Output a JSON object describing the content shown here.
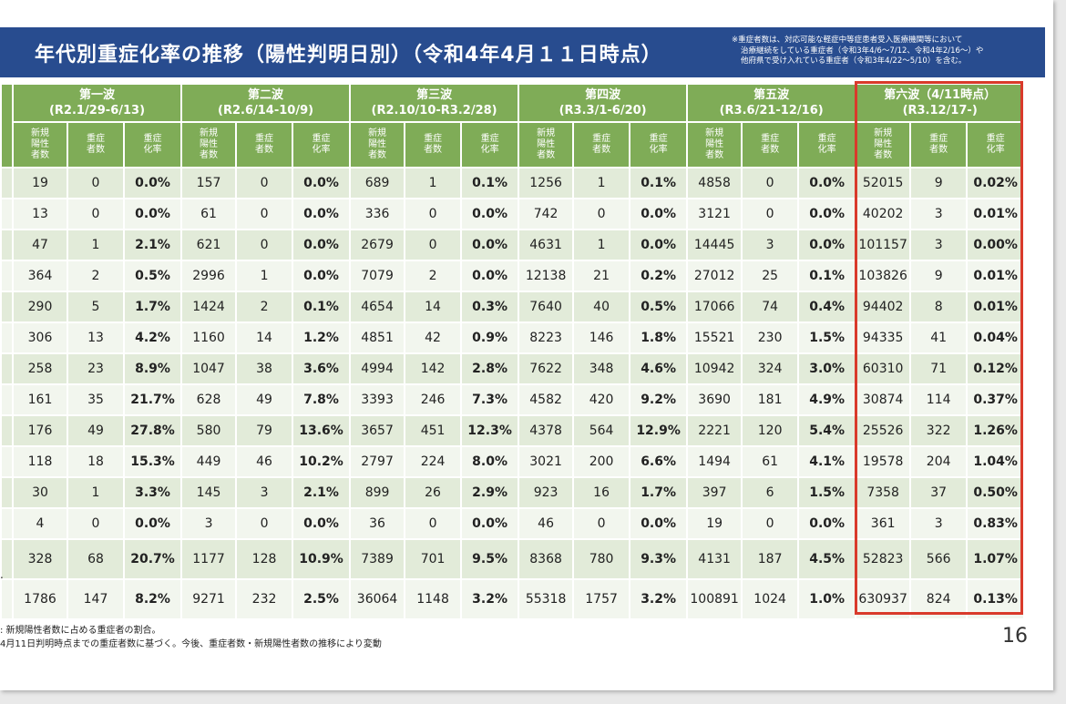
{
  "title": "年代別重症化率の推移（陽性判明日別）（令和4年4月１１日時点）",
  "note": [
    "※重症者数は、対応可能な軽症中等症患者受入医療機関等において",
    "治療継続をしている重症者（令和3年4/6～7/12、令和4年2/16～）や",
    "他府県で受け入れている重症者（令和3年4/22～5/10）を含む。"
  ],
  "waves": [
    {
      "name": "第一波",
      "period": "(R2.1/29-6/13)"
    },
    {
      "name": "第二波",
      "period": "(R2.6/14-10/9)"
    },
    {
      "name": "第三波",
      "period": "(R2.10/10-R3.2/28)"
    },
    {
      "name": "第四波",
      "period": "(R3.3/1-6/20)"
    },
    {
      "name": "第五波",
      "period": "(R3.6/21-12/16)"
    },
    {
      "name": "第六波（4/11時点）",
      "period": "(R3.12/17-)"
    }
  ],
  "subheaders": [
    "新規陽性者数",
    "重症者数",
    "重症化率"
  ],
  "rows": [
    [
      "19",
      "0",
      "0.0%",
      "157",
      "0",
      "0.0%",
      "689",
      "1",
      "0.1%",
      "1256",
      "1",
      "0.1%",
      "4858",
      "0",
      "0.0%",
      "52015",
      "9",
      "0.02%"
    ],
    [
      "13",
      "0",
      "0.0%",
      "61",
      "0",
      "0.0%",
      "336",
      "0",
      "0.0%",
      "742",
      "0",
      "0.0%",
      "3121",
      "0",
      "0.0%",
      "40202",
      "3",
      "0.01%"
    ],
    [
      "47",
      "1",
      "2.1%",
      "621",
      "0",
      "0.0%",
      "2679",
      "0",
      "0.0%",
      "4631",
      "1",
      "0.0%",
      "14445",
      "3",
      "0.0%",
      "101157",
      "3",
      "0.00%"
    ],
    [
      "364",
      "2",
      "0.5%",
      "2996",
      "1",
      "0.0%",
      "7079",
      "2",
      "0.0%",
      "12138",
      "21",
      "0.2%",
      "27012",
      "25",
      "0.1%",
      "103826",
      "9",
      "0.01%"
    ],
    [
      "290",
      "5",
      "1.7%",
      "1424",
      "2",
      "0.1%",
      "4654",
      "14",
      "0.3%",
      "7640",
      "40",
      "0.5%",
      "17066",
      "74",
      "0.4%",
      "94402",
      "8",
      "0.01%"
    ],
    [
      "306",
      "13",
      "4.2%",
      "1160",
      "14",
      "1.2%",
      "4851",
      "42",
      "0.9%",
      "8223",
      "146",
      "1.8%",
      "15521",
      "230",
      "1.5%",
      "94335",
      "41",
      "0.04%"
    ],
    [
      "258",
      "23",
      "8.9%",
      "1047",
      "38",
      "3.6%",
      "4994",
      "142",
      "2.8%",
      "7622",
      "348",
      "4.6%",
      "10942",
      "324",
      "3.0%",
      "60310",
      "71",
      "0.12%"
    ],
    [
      "161",
      "35",
      "21.7%",
      "628",
      "49",
      "7.8%",
      "3393",
      "246",
      "7.3%",
      "4582",
      "420",
      "9.2%",
      "3690",
      "181",
      "4.9%",
      "30874",
      "114",
      "0.37%"
    ],
    [
      "176",
      "49",
      "27.8%",
      "580",
      "79",
      "13.6%",
      "3657",
      "451",
      "12.3%",
      "4378",
      "564",
      "12.9%",
      "2221",
      "120",
      "5.4%",
      "25526",
      "322",
      "1.26%"
    ],
    [
      "118",
      "18",
      "15.3%",
      "449",
      "46",
      "10.2%",
      "2797",
      "224",
      "8.0%",
      "3021",
      "200",
      "6.6%",
      "1494",
      "61",
      "4.1%",
      "19578",
      "204",
      "1.04%"
    ],
    [
      "30",
      "1",
      "3.3%",
      "145",
      "3",
      "2.1%",
      "899",
      "26",
      "2.9%",
      "923",
      "16",
      "1.7%",
      "397",
      "6",
      "1.5%",
      "7358",
      "37",
      "0.50%"
    ],
    [
      "4",
      "0",
      "0.0%",
      "3",
      "0",
      "0.0%",
      "36",
      "0",
      "0.0%",
      "46",
      "0",
      "0.0%",
      "19",
      "0",
      "0.0%",
      "361",
      "3",
      "0.83%"
    ],
    [
      "328",
      "68",
      "20.7%",
      "1177",
      "128",
      "10.9%",
      "7389",
      "701",
      "9.5%",
      "8368",
      "780",
      "9.3%",
      "4131",
      "187",
      "4.5%",
      "52823",
      "566",
      "1.07%"
    ],
    [
      "1786",
      "147",
      "8.2%",
      "9271",
      "232",
      "2.5%",
      "36064",
      "1148",
      "3.2%",
      "55318",
      "1757",
      "3.2%",
      "100891",
      "1024",
      "1.0%",
      "630937",
      "824",
      "0.13%"
    ]
  ],
  "footnotes": [
    ": 新規陽性者数に占める重症者の割合。",
    "4月11日判明時点までの重症者数に基づく。今後、重症者数・新規陽性者数の推移により変動"
  ],
  "page_number": "16",
  "left_fragment": "."
}
